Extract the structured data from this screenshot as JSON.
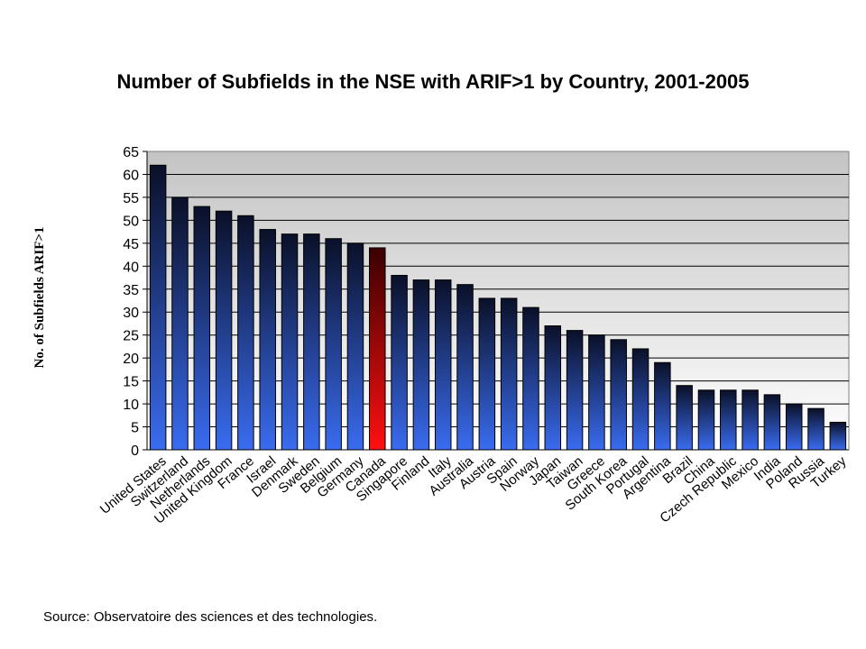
{
  "chart_data": {
    "type": "bar",
    "title": "Number of Subfields in the NSE with ARIF>1 by Country, 2001-2005",
    "ylabel": "No. of Subfields ARIF>1",
    "xlabel": "",
    "ylim": [
      0,
      65
    ],
    "yticks": [
      0,
      5,
      10,
      15,
      20,
      25,
      30,
      35,
      40,
      45,
      50,
      55,
      60,
      65
    ],
    "grid": true,
    "legend": "none",
    "categories": [
      "United States",
      "Switzerland",
      "Netherlands",
      "United Kingdom",
      "France",
      "Israel",
      "Denmark",
      "Sweden",
      "Belgium",
      "Germany",
      "Canada",
      "Singapore",
      "Finland",
      "Italy",
      "Australia",
      "Austria",
      "Spain",
      "Norway",
      "Japan",
      "Taiwan",
      "Greece",
      "South Korea",
      "Portugal",
      "Argentina",
      "Brazil",
      "China",
      "Czech Republic",
      "Mexico",
      "India",
      "Poland",
      "Russia",
      "Turkey"
    ],
    "values": [
      62,
      55,
      53,
      52,
      51,
      48,
      47,
      47,
      46,
      45,
      44,
      38,
      37,
      37,
      36,
      33,
      33,
      31,
      27,
      26,
      25,
      24,
      22,
      19,
      14,
      13,
      13,
      13,
      12,
      10,
      9,
      6
    ],
    "highlight": "Canada",
    "colors": {
      "bar_top": "#0a1028",
      "bar_bottom": "#3a6cf0",
      "highlight_top": "#3a0000",
      "highlight_bottom": "#ff1010",
      "plot_bg_top": "#c4c4c4",
      "plot_bg_bottom": "#ffffff"
    }
  },
  "footer": {
    "source": "Source: Observatoire des sciences et des technologies."
  }
}
